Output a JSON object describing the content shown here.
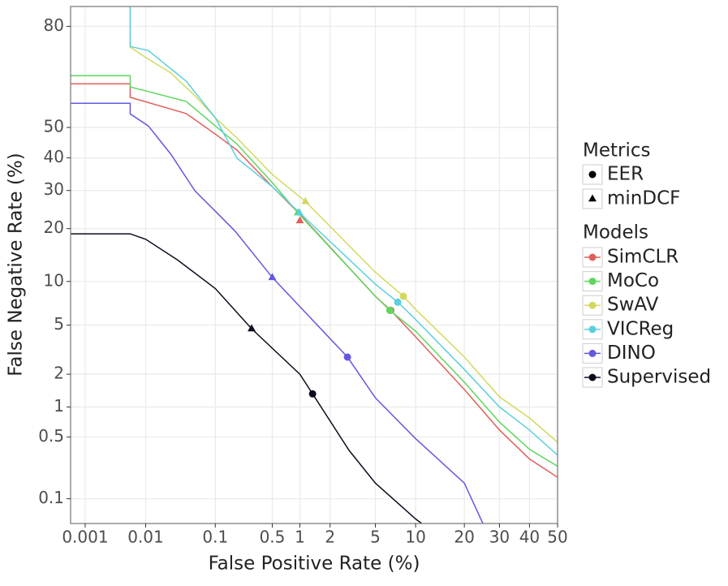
{
  "chart_data": {
    "type": "line",
    "x_label": "False Positive Rate (%)",
    "y_label": "False Negative Rate (%)",
    "xscale": "probit",
    "yscale": "probit",
    "xlim": [
      0.00055,
      50
    ],
    "ylim": [
      0.049,
      84.3
    ],
    "xticks": [
      0.001,
      0.01,
      0.1,
      0.5,
      1,
      2,
      5,
      10,
      20,
      30,
      40,
      50
    ],
    "yticks": [
      0.1,
      0.5,
      1,
      2,
      5,
      10,
      20,
      30,
      40,
      50,
      80
    ],
    "grid": true,
    "legend_position": "right",
    "metrics_title": "Metrics",
    "metrics": [
      "EER",
      "minDCF"
    ],
    "models_title": "Models",
    "series": [
      {
        "name": "SimCLR",
        "color": "#e0605a",
        "x": [
          0.00055,
          0.0057,
          0.0057,
          0.04,
          0.1,
          0.19,
          0.5,
          1,
          5,
          6.6,
          10,
          20,
          30,
          40,
          50
        ],
        "values": [
          64.2,
          64.2,
          59.9,
          54.6,
          47.8,
          42.5,
          31.1,
          23.5,
          8.0,
          6.4,
          4.07,
          1.46,
          0.59,
          0.29,
          0.18
        ],
        "eer": {
          "x": 6.6,
          "y": 6.4
        },
        "min_dcf": {
          "x": 1,
          "y": 21.9
        }
      },
      {
        "name": "MoCo",
        "color": "#5ed65e",
        "x": [
          0.00055,
          0.0057,
          0.0057,
          0.04,
          0.1,
          0.19,
          0.5,
          0.95,
          5,
          6.5,
          10,
          20,
          30,
          40,
          50
        ],
        "values": [
          66.7,
          66.7,
          63.2,
          58.6,
          50.5,
          44.5,
          32.3,
          23.9,
          8.0,
          6.4,
          4.5,
          1.7,
          0.71,
          0.37,
          0.24
        ],
        "eer": {
          "x": 6.5,
          "y": 6.4
        },
        "min_dcf": {
          "x": 0.95,
          "y": 23.9
        }
      },
      {
        "name": "SwAV",
        "color": "#d4d85f",
        "x": [
          0.0057,
          0.0057,
          0.01,
          0.024,
          0.053,
          0.1,
          0.19,
          0.5,
          1.14,
          5,
          8.2,
          10,
          20,
          30,
          40,
          50
        ],
        "values": [
          84.3,
          74.8,
          72,
          67.5,
          60.4,
          53.2,
          46.5,
          34.8,
          26.9,
          11.4,
          8.0,
          6.5,
          2.8,
          1.25,
          0.78,
          0.44
        ],
        "eer": {
          "x": 8.2,
          "y": 8.0
        },
        "min_dcf": {
          "x": 1.14,
          "y": 26.9
        }
      },
      {
        "name": "VICReg",
        "color": "#5ccfdd",
        "x": [
          0.0057,
          0.0057,
          0.011,
          0.04,
          0.1,
          0.19,
          0.5,
          0.99,
          5,
          7.45,
          10,
          20,
          30,
          40,
          50
        ],
        "values": [
          84.3,
          75,
          73.9,
          65,
          53.2,
          39.9,
          31.1,
          23.9,
          9.6,
          7.3,
          5.5,
          2.2,
          1.0,
          0.59,
          0.32
        ],
        "eer": {
          "x": 7.45,
          "y": 7.3
        },
        "min_dcf": {
          "x": 0.99,
          "y": 23.9
        }
      },
      {
        "name": "DINO",
        "color": "#6459e0",
        "x": [
          0.00055,
          0.0057,
          0.0057,
          0.011,
          0.024,
          0.053,
          0.1,
          0.18,
          0.5,
          2.89,
          5,
          10,
          20,
          25
        ],
        "values": [
          58,
          58,
          54.5,
          50.5,
          41.2,
          29.9,
          24.3,
          19.4,
          10.6,
          2.8,
          1.22,
          0.48,
          0.154,
          0.049
        ],
        "eer": {
          "x": 2.89,
          "y": 2.8
        },
        "min_dcf": {
          "x": 0.5,
          "y": 10.6
        }
      },
      {
        "name": "Supervised",
        "color": "#0d0d1f",
        "x": [
          0.00055,
          0.0057,
          0.01,
          0.03,
          0.1,
          0.287,
          1,
          1.35,
          2.99,
          5,
          10,
          11
        ],
        "values": [
          18.8,
          18.8,
          17.6,
          13.5,
          9.0,
          4.7,
          2.0,
          1.33,
          0.36,
          0.154,
          0.056,
          0.049
        ],
        "eer": {
          "x": 1.35,
          "y": 1.33
        },
        "min_dcf": {
          "x": 0.287,
          "y": 4.7
        }
      }
    ]
  }
}
